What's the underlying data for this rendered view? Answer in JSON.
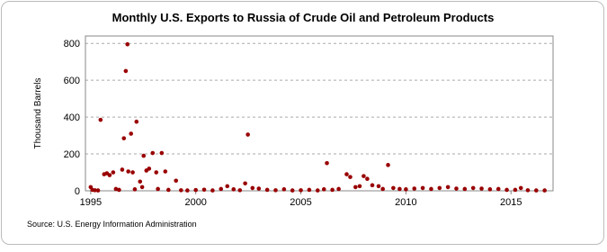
{
  "chart_data": {
    "type": "scatter",
    "title": "Monthly U.S. Exports to Russia of Crude Oil and Petroleum Products",
    "y_label": "Thousand Barrels",
    "source": "Source: U.S. Energy Information Administration",
    "color": "#990000",
    "grid": true,
    "xlim": [
      1994.75,
      2017
    ],
    "ylim": [
      0,
      840
    ],
    "xticks": [
      1995,
      2000,
      2005,
      2010,
      2015
    ],
    "yticks": [
      0,
      200,
      400,
      600,
      800
    ],
    "x": [
      1995.0,
      1995.08,
      1995.2,
      1995.35,
      1995.47,
      1995.64,
      1995.77,
      1995.9,
      1996.07,
      1996.2,
      1996.35,
      1996.5,
      1996.58,
      1996.67,
      1996.75,
      1996.79,
      1996.92,
      1997.0,
      1997.1,
      1997.18,
      1997.35,
      1997.45,
      1997.52,
      1997.65,
      1997.78,
      1997.95,
      1998.12,
      1998.2,
      1998.38,
      1998.55,
      1998.7,
      1999.06,
      1999.3,
      1999.6,
      2000.0,
      2000.4,
      2000.8,
      2001.2,
      2001.5,
      2001.8,
      2002.1,
      2002.35,
      2002.48,
      2002.7,
      2003.0,
      2003.4,
      2003.8,
      2004.2,
      2004.6,
      2005.0,
      2005.4,
      2005.8,
      2006.1,
      2006.24,
      2006.5,
      2006.8,
      2007.18,
      2007.35,
      2007.6,
      2007.8,
      2007.99,
      2008.16,
      2008.4,
      2008.7,
      2008.9,
      2009.15,
      2009.4,
      2009.7,
      2010.0,
      2010.4,
      2010.8,
      2011.2,
      2011.6,
      2012.0,
      2012.4,
      2012.8,
      2013.2,
      2013.6,
      2014.0,
      2014.4,
      2014.8,
      2015.2,
      2015.47,
      2015.8,
      2016.2,
      2016.6
    ],
    "values": [
      20,
      5,
      3,
      2,
      385,
      90,
      95,
      85,
      100,
      10,
      5,
      115,
      285,
      650,
      795,
      105,
      310,
      100,
      8,
      375,
      50,
      20,
      190,
      110,
      120,
      205,
      100,
      10,
      205,
      105,
      5,
      55,
      3,
      2,
      4,
      6,
      2,
      10,
      25,
      8,
      3,
      40,
      305,
      15,
      12,
      5,
      3,
      8,
      2,
      3,
      5,
      2,
      8,
      150,
      5,
      10,
      90,
      75,
      20,
      25,
      80,
      65,
      30,
      25,
      10,
      140,
      15,
      10,
      8,
      12,
      15,
      10,
      15,
      20,
      12,
      10,
      15,
      12,
      8,
      10,
      5,
      5,
      15,
      3,
      2,
      2
    ]
  }
}
